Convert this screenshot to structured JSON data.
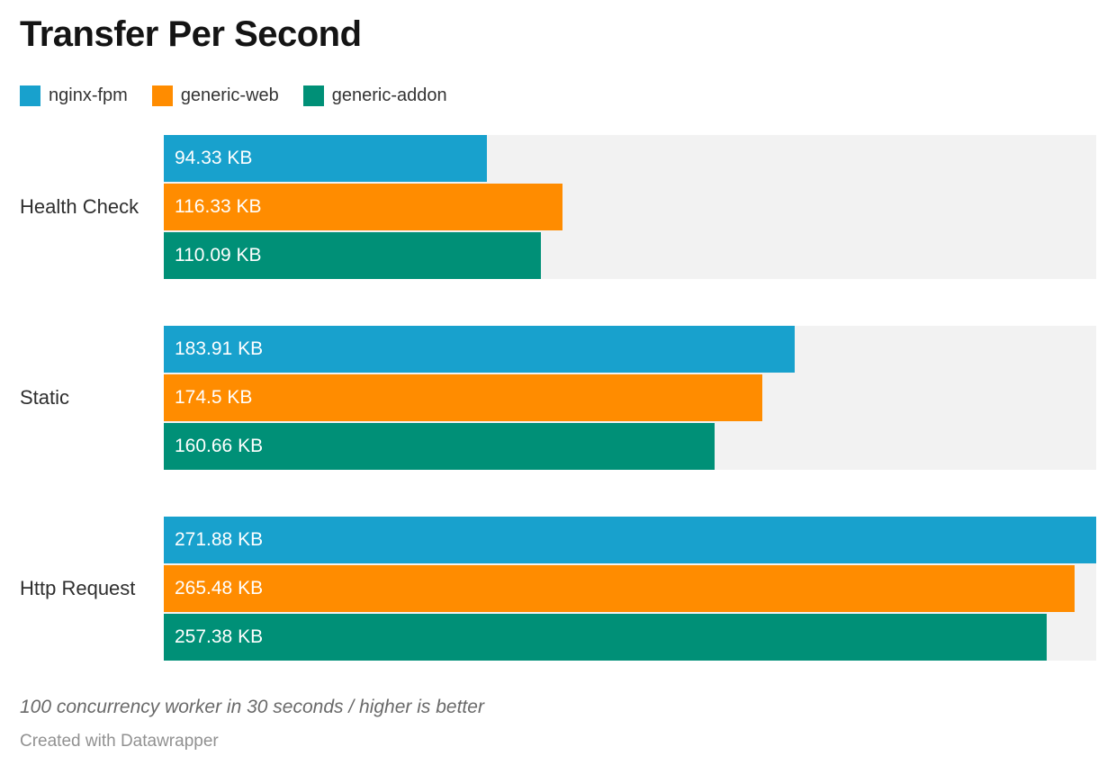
{
  "title": "Transfer Per Second",
  "chart_data": {
    "type": "bar",
    "orientation": "horizontal",
    "unit": "KB",
    "axis_max": 271.88,
    "track_color": "#f2f2f2",
    "legend_position": "top-left",
    "grid": false,
    "categories": [
      "Health Check",
      "Static",
      "Http Request"
    ],
    "series": [
      {
        "name": "nginx-fpm",
        "color": "#18a1cd",
        "values": [
          94.33,
          183.91,
          271.88
        ]
      },
      {
        "name": "generic-web",
        "color": "#ff8c00",
        "values": [
          116.33,
          174.5,
          265.48
        ]
      },
      {
        "name": "generic-addon",
        "color": "#009077",
        "values": [
          110.09,
          160.66,
          257.38
        ]
      }
    ],
    "value_labels": [
      [
        "94.33 KB",
        "116.33 KB",
        "110.09 KB"
      ],
      [
        "183.91 KB",
        "174.5 KB",
        "160.66 KB"
      ],
      [
        "271.88 KB",
        "265.48 KB",
        "257.38 KB"
      ]
    ]
  },
  "footer": {
    "note": "100 concurrency worker in 30 seconds / higher is better",
    "attribution": "Created with Datawrapper"
  }
}
